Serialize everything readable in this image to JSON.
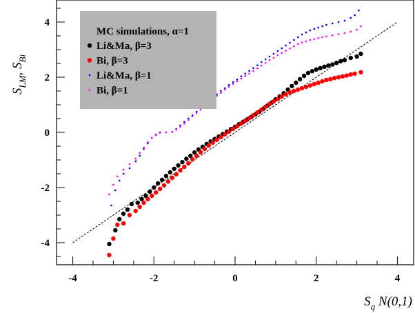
{
  "chart_data": {
    "type": "scatter",
    "title": "",
    "xlabel_main": "S",
    "xlabel_sub": "q",
    "xlabel_rest": " N(0,1)",
    "ylabel_main1": "S",
    "ylabel_sub1": "LM",
    "ylabel_sep": ", S",
    "ylabel_sub2": "Bi",
    "xlim": [
      -4.4,
      4.4
    ],
    "ylim": [
      -4.8,
      4.8
    ],
    "xticks": [
      -4,
      -2,
      0,
      2,
      4
    ],
    "yticks": [
      -4,
      -2,
      0,
      2,
      4
    ],
    "xtick_labels": [
      "-4",
      "-2",
      "0",
      "2",
      "4"
    ],
    "ytick_labels": [
      "-4",
      "-2",
      "0",
      "2",
      "4"
    ],
    "grid": false,
    "legend_position": "top-left",
    "legend_title": "MC simulations, α=1",
    "legend_bg": "#b3b3b3",
    "reference_line": {
      "style": "dashed",
      "x": [
        -4,
        4
      ],
      "y": [
        -4,
        4
      ]
    },
    "series": [
      {
        "name": "Li&Ma, β=3",
        "color": "#000000",
        "marker": "large",
        "points": [
          [
            -3.1,
            -4.05
          ],
          [
            -2.95,
            -3.55
          ],
          [
            -2.85,
            -3.15
          ],
          [
            -2.75,
            -2.95
          ],
          [
            -2.65,
            -2.8
          ],
          [
            -2.55,
            -2.6
          ],
          [
            -2.4,
            -2.55
          ],
          [
            -2.3,
            -2.42
          ],
          [
            -2.2,
            -2.3
          ],
          [
            -2.1,
            -2.15
          ],
          [
            -2.0,
            -2.0
          ],
          [
            -1.9,
            -1.85
          ],
          [
            -1.8,
            -1.72
          ],
          [
            -1.7,
            -1.58
          ],
          [
            -1.6,
            -1.45
          ],
          [
            -1.5,
            -1.32
          ],
          [
            -1.4,
            -1.2
          ],
          [
            -1.3,
            -1.08
          ],
          [
            -1.2,
            -0.96
          ],
          [
            -1.1,
            -0.85
          ],
          [
            -1.0,
            -0.73
          ],
          [
            -0.9,
            -0.62
          ],
          [
            -0.8,
            -0.52
          ],
          [
            -0.7,
            -0.42
          ],
          [
            -0.6,
            -0.33
          ],
          [
            -0.5,
            -0.24
          ],
          [
            -0.4,
            -0.15
          ],
          [
            -0.3,
            -0.06
          ],
          [
            -0.2,
            0.03
          ],
          [
            -0.1,
            0.12
          ],
          [
            0.0,
            0.2
          ],
          [
            0.1,
            0.3
          ],
          [
            0.2,
            0.38
          ],
          [
            0.3,
            0.47
          ],
          [
            0.4,
            0.56
          ],
          [
            0.5,
            0.65
          ],
          [
            0.6,
            0.75
          ],
          [
            0.7,
            0.86
          ],
          [
            0.8,
            0.97
          ],
          [
            0.9,
            1.08
          ],
          [
            1.0,
            1.2
          ],
          [
            1.1,
            1.3
          ],
          [
            1.2,
            1.42
          ],
          [
            1.3,
            1.55
          ],
          [
            1.4,
            1.68
          ],
          [
            1.5,
            1.8
          ],
          [
            1.6,
            1.93
          ],
          [
            1.7,
            2.05
          ],
          [
            1.8,
            2.15
          ],
          [
            1.9,
            2.22
          ],
          [
            2.0,
            2.28
          ],
          [
            2.1,
            2.33
          ],
          [
            2.2,
            2.38
          ],
          [
            2.3,
            2.42
          ],
          [
            2.4,
            2.46
          ],
          [
            2.5,
            2.52
          ],
          [
            2.6,
            2.58
          ],
          [
            2.7,
            2.62
          ],
          [
            2.85,
            2.7
          ],
          [
            3.0,
            2.75
          ],
          [
            3.1,
            2.85
          ]
        ]
      },
      {
        "name": "Bi, β=3",
        "color": "#ff0000",
        "marker": "large",
        "points": [
          [
            -3.1,
            -4.45
          ],
          [
            -3.0,
            -3.85
          ],
          [
            -2.9,
            -3.35
          ],
          [
            -2.75,
            -3.3
          ],
          [
            -2.6,
            -3.0
          ],
          [
            -2.45,
            -2.85
          ],
          [
            -2.35,
            -2.7
          ],
          [
            -2.25,
            -2.55
          ],
          [
            -2.15,
            -2.42
          ],
          [
            -2.05,
            -2.3
          ],
          [
            -1.95,
            -2.18
          ],
          [
            -1.85,
            -2.05
          ],
          [
            -1.75,
            -1.92
          ],
          [
            -1.65,
            -1.78
          ],
          [
            -1.55,
            -1.65
          ],
          [
            -1.45,
            -1.52
          ],
          [
            -1.35,
            -1.38
          ],
          [
            -1.25,
            -1.25
          ],
          [
            -1.15,
            -1.12
          ],
          [
            -1.05,
            -0.98
          ],
          [
            -0.95,
            -0.85
          ],
          [
            -0.85,
            -0.72
          ],
          [
            -0.75,
            -0.6
          ],
          [
            -0.65,
            -0.48
          ],
          [
            -0.55,
            -0.37
          ],
          [
            -0.45,
            -0.27
          ],
          [
            -0.35,
            -0.17
          ],
          [
            -0.25,
            -0.07
          ],
          [
            -0.15,
            0.03
          ],
          [
            -0.05,
            0.13
          ],
          [
            0.05,
            0.22
          ],
          [
            0.15,
            0.32
          ],
          [
            0.25,
            0.42
          ],
          [
            0.35,
            0.52
          ],
          [
            0.45,
            0.62
          ],
          [
            0.55,
            0.72
          ],
          [
            0.65,
            0.82
          ],
          [
            0.75,
            0.93
          ],
          [
            0.85,
            1.03
          ],
          [
            0.95,
            1.12
          ],
          [
            1.05,
            1.2
          ],
          [
            1.15,
            1.3
          ],
          [
            1.25,
            1.38
          ],
          [
            1.35,
            1.45
          ],
          [
            1.45,
            1.5
          ],
          [
            1.55,
            1.55
          ],
          [
            1.65,
            1.6
          ],
          [
            1.75,
            1.65
          ],
          [
            1.85,
            1.7
          ],
          [
            1.95,
            1.75
          ],
          [
            2.05,
            1.8
          ],
          [
            2.15,
            1.85
          ],
          [
            2.25,
            1.9
          ],
          [
            2.35,
            1.93
          ],
          [
            2.45,
            1.97
          ],
          [
            2.55,
            2.0
          ],
          [
            2.65,
            2.03
          ],
          [
            2.75,
            2.06
          ],
          [
            2.85,
            2.1
          ],
          [
            2.95,
            2.13
          ],
          [
            3.1,
            2.18
          ]
        ]
      },
      {
        "name": "Li&Ma, β=1",
        "color": "#0000ff",
        "marker": "small",
        "points": [
          [
            -3.05,
            -2.65
          ],
          [
            -2.95,
            -2.1
          ],
          [
            -2.85,
            -1.75
          ],
          [
            -2.75,
            -1.5
          ],
          [
            -2.6,
            -1.3
          ],
          [
            -2.45,
            -1.05
          ],
          [
            -2.35,
            -0.85
          ],
          [
            -2.25,
            -0.6
          ],
          [
            -2.15,
            -0.4
          ],
          [
            -2.05,
            -0.2
          ],
          [
            -1.95,
            -0.08
          ],
          [
            -1.85,
            0.0
          ],
          [
            -1.7,
            0.0
          ],
          [
            -1.55,
            0.02
          ],
          [
            -1.45,
            0.12
          ],
          [
            -1.35,
            0.25
          ],
          [
            -1.25,
            0.38
          ],
          [
            -1.15,
            0.5
          ],
          [
            -1.05,
            0.62
          ],
          [
            -0.95,
            0.75
          ],
          [
            -0.85,
            0.88
          ],
          [
            -0.75,
            1.0
          ],
          [
            -0.65,
            1.12
          ],
          [
            -0.55,
            1.25
          ],
          [
            -0.45,
            1.38
          ],
          [
            -0.35,
            1.5
          ],
          [
            -0.25,
            1.6
          ],
          [
            -0.15,
            1.72
          ],
          [
            -0.05,
            1.82
          ],
          [
            0.05,
            1.92
          ],
          [
            0.15,
            2.03
          ],
          [
            0.25,
            2.13
          ],
          [
            0.35,
            2.23
          ],
          [
            0.45,
            2.33
          ],
          [
            0.55,
            2.43
          ],
          [
            0.65,
            2.55
          ],
          [
            0.75,
            2.65
          ],
          [
            0.85,
            2.75
          ],
          [
            0.95,
            2.85
          ],
          [
            1.05,
            2.95
          ],
          [
            1.15,
            3.05
          ],
          [
            1.25,
            3.15
          ],
          [
            1.35,
            3.25
          ],
          [
            1.45,
            3.35
          ],
          [
            1.55,
            3.45
          ],
          [
            1.65,
            3.55
          ],
          [
            1.75,
            3.62
          ],
          [
            1.85,
            3.7
          ],
          [
            1.95,
            3.75
          ],
          [
            2.05,
            3.8
          ],
          [
            2.15,
            3.85
          ],
          [
            2.25,
            3.9
          ],
          [
            2.4,
            3.95
          ],
          [
            2.55,
            4.0
          ],
          [
            2.7,
            4.05
          ],
          [
            2.85,
            4.15
          ],
          [
            2.95,
            4.25
          ],
          [
            3.05,
            4.42
          ]
        ]
      },
      {
        "name": "Bi, β=1",
        "color": "#ff00ff",
        "marker": "small",
        "points": [
          [
            -3.1,
            -2.25
          ],
          [
            -3.0,
            -1.9
          ],
          [
            -2.9,
            -1.6
          ],
          [
            -2.75,
            -1.35
          ],
          [
            -2.6,
            -1.15
          ],
          [
            -2.45,
            -0.95
          ],
          [
            -2.35,
            -0.75
          ],
          [
            -2.25,
            -0.55
          ],
          [
            -2.15,
            -0.35
          ],
          [
            -2.05,
            -0.2
          ],
          [
            -1.95,
            -0.1
          ],
          [
            -1.85,
            -0.02
          ],
          [
            -1.7,
            0.0
          ],
          [
            -1.55,
            0.02
          ],
          [
            -1.45,
            0.1
          ],
          [
            -1.35,
            0.2
          ],
          [
            -1.25,
            0.32
          ],
          [
            -1.15,
            0.45
          ],
          [
            -1.05,
            0.58
          ],
          [
            -0.95,
            0.7
          ],
          [
            -0.85,
            0.82
          ],
          [
            -0.75,
            0.95
          ],
          [
            -0.65,
            1.07
          ],
          [
            -0.55,
            1.2
          ],
          [
            -0.45,
            1.32
          ],
          [
            -0.35,
            1.43
          ],
          [
            -0.25,
            1.55
          ],
          [
            -0.15,
            1.65
          ],
          [
            -0.05,
            1.75
          ],
          [
            0.05,
            1.85
          ],
          [
            0.15,
            1.95
          ],
          [
            0.25,
            2.04
          ],
          [
            0.35,
            2.13
          ],
          [
            0.45,
            2.22
          ],
          [
            0.55,
            2.32
          ],
          [
            0.65,
            2.42
          ],
          [
            0.75,
            2.52
          ],
          [
            0.85,
            2.62
          ],
          [
            0.95,
            2.7
          ],
          [
            1.05,
            2.8
          ],
          [
            1.15,
            2.88
          ],
          [
            1.25,
            2.96
          ],
          [
            1.35,
            3.04
          ],
          [
            1.45,
            3.12
          ],
          [
            1.55,
            3.2
          ],
          [
            1.65,
            3.26
          ],
          [
            1.75,
            3.3
          ],
          [
            1.85,
            3.35
          ],
          [
            1.95,
            3.38
          ],
          [
            2.05,
            3.42
          ],
          [
            2.15,
            3.45
          ],
          [
            2.25,
            3.48
          ],
          [
            2.4,
            3.52
          ],
          [
            2.55,
            3.56
          ],
          [
            2.7,
            3.6
          ],
          [
            2.85,
            3.65
          ],
          [
            3.0,
            3.72
          ],
          [
            3.1,
            3.85
          ]
        ]
      }
    ]
  }
}
